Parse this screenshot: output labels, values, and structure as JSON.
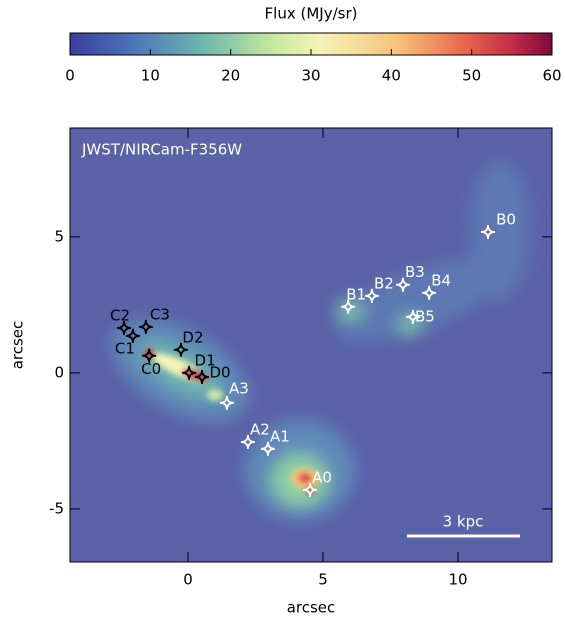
{
  "chart_data": {
    "type": "scatter",
    "title": "JWST/NIRCam-F356W",
    "xlabel": "arcsec",
    "ylabel": "arcsec",
    "xlim": [
      -4.37,
      13.48
    ],
    "ylim": [
      -6.95,
      9.0
    ],
    "xticks": [
      0,
      5,
      10
    ],
    "yticks": [
      -5,
      0,
      5
    ],
    "colorbar": {
      "label": "Flux (MJy/sr)",
      "lim": [
        0,
        60
      ],
      "ticks": [
        0,
        10,
        20,
        30,
        40,
        50,
        60
      ]
    },
    "scalebar": "3 kpc",
    "sources": [
      {
        "label": "B0",
        "x": 11.11,
        "y": 5.18,
        "color": "#ffffff"
      },
      {
        "label": "B1",
        "x": 5.93,
        "y": 2.43,
        "color": "#ffffff"
      },
      {
        "label": "B2",
        "x": 6.81,
        "y": 2.83,
        "color": "#ffffff"
      },
      {
        "label": "B3",
        "x": 7.96,
        "y": 3.24,
        "color": "#ffffff"
      },
      {
        "label": "B4",
        "x": 8.93,
        "y": 2.94,
        "color": "#ffffff"
      },
      {
        "label": "B5",
        "x": 8.33,
        "y": 2.06,
        "color": "#ffffff"
      },
      {
        "label": "C2",
        "x": -2.37,
        "y": 1.65,
        "color": "#000000"
      },
      {
        "label": "C1",
        "x": -2.04,
        "y": 1.36,
        "color": "#000000"
      },
      {
        "label": "C3",
        "x": -1.56,
        "y": 1.69,
        "color": "#000000"
      },
      {
        "label": "C0",
        "x": -1.44,
        "y": 0.63,
        "color": "#000000"
      },
      {
        "label": "D2",
        "x": -0.26,
        "y": 0.85,
        "color": "#000000"
      },
      {
        "label": "D1",
        "x": 0.04,
        "y": 0.0,
        "color": "#000000"
      },
      {
        "label": "D0",
        "x": 0.52,
        "y": -0.15,
        "color": "#000000"
      },
      {
        "label": "A3",
        "x": 1.44,
        "y": -1.1,
        "color": "#ffffff"
      },
      {
        "label": "A2",
        "x": 2.22,
        "y": -2.54,
        "color": "#ffffff"
      },
      {
        "label": "A1",
        "x": 2.96,
        "y": -2.79,
        "color": "#ffffff"
      },
      {
        "label": "A0",
        "x": 4.52,
        "y": -4.3,
        "color": "#ffffff"
      }
    ]
  }
}
